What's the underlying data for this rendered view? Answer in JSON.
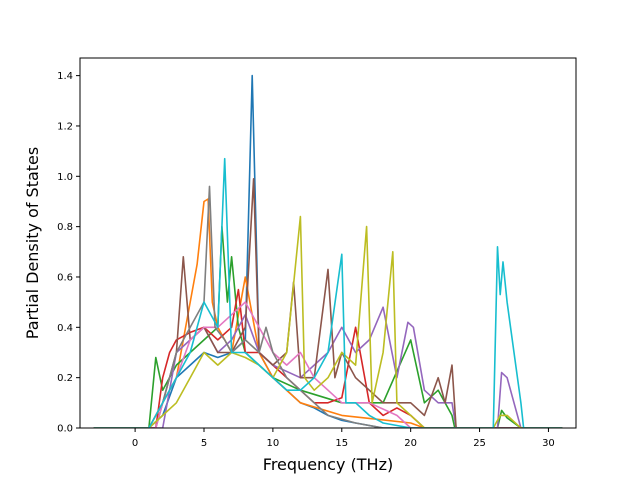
{
  "chart_data": {
    "type": "line",
    "title": "",
    "xlabel": "Frequency (THz)",
    "ylabel": "Partial Density of States",
    "xlim": [
      -4,
      32
    ],
    "ylim": [
      0,
      1.47
    ],
    "xticks": [
      0,
      5,
      10,
      15,
      20,
      25,
      30
    ],
    "yticks": [
      0.0,
      0.2,
      0.4,
      0.6,
      0.8,
      1.0,
      1.2,
      1.4
    ],
    "xtick_labels": [
      "0",
      "5",
      "10",
      "15",
      "20",
      "25",
      "30"
    ],
    "ytick_labels": [
      "0.0",
      "0.2",
      "0.4",
      "0.6",
      "0.8",
      "1.0",
      "1.2",
      "1.4"
    ],
    "grid": false,
    "legend": "none",
    "colors": [
      "#1f77b4",
      "#ff7f0e",
      "#2ca02c",
      "#d62728",
      "#9467bd",
      "#8c564b",
      "#e377c2",
      "#7f7f7f",
      "#bcbd22",
      "#17becf"
    ],
    "series": [
      {
        "color": "#1f77b4",
        "points": [
          [
            -3,
            0
          ],
          [
            1,
            0
          ],
          [
            2,
            0.05
          ],
          [
            3,
            0.2
          ],
          [
            4,
            0.25
          ],
          [
            5,
            0.3
          ],
          [
            6,
            0.28
          ],
          [
            7,
            0.3
          ],
          [
            8,
            0.35
          ],
          [
            8.5,
            1.4
          ],
          [
            9,
            0.3
          ],
          [
            10,
            0.2
          ],
          [
            11,
            0.15
          ],
          [
            12,
            0.1
          ],
          [
            13,
            0.08
          ],
          [
            14,
            0.05
          ],
          [
            15,
            0.03
          ],
          [
            16,
            0.02
          ],
          [
            17,
            0.01
          ],
          [
            18,
            0
          ],
          [
            31,
            0
          ]
        ]
      },
      {
        "color": "#ff7f0e",
        "points": [
          [
            -3,
            0
          ],
          [
            1,
            0
          ],
          [
            2,
            0.1
          ],
          [
            3,
            0.2
          ],
          [
            4,
            0.5
          ],
          [
            4.5,
            0.65
          ],
          [
            5,
            0.9
          ],
          [
            5.3,
            0.91
          ],
          [
            5.6,
            0.5
          ],
          [
            6,
            0.4
          ],
          [
            7,
            0.3
          ],
          [
            8,
            0.6
          ],
          [
            9,
            0.3
          ],
          [
            10,
            0.2
          ],
          [
            12,
            0.1
          ],
          [
            15,
            0.05
          ],
          [
            20,
            0.02
          ],
          [
            21,
            0
          ],
          [
            31,
            0
          ]
        ]
      },
      {
        "color": "#2ca02c",
        "points": [
          [
            -3,
            0
          ],
          [
            1,
            0
          ],
          [
            1.5,
            0.28
          ],
          [
            2,
            0.15
          ],
          [
            3,
            0.25
          ],
          [
            4,
            0.3
          ],
          [
            5,
            0.35
          ],
          [
            6,
            0.4
          ],
          [
            6.3,
            0.8
          ],
          [
            6.7,
            0.5
          ],
          [
            7,
            0.68
          ],
          [
            7.5,
            0.4
          ],
          [
            8,
            0.3
          ],
          [
            9,
            0.25
          ],
          [
            10,
            0.2
          ],
          [
            12,
            0.15
          ],
          [
            15,
            0.1
          ],
          [
            18,
            0.1
          ],
          [
            20,
            0.35
          ],
          [
            21,
            0.1
          ],
          [
            22,
            0.15
          ],
          [
            23,
            0.05
          ],
          [
            23.2,
            0
          ],
          [
            26.3,
            0
          ],
          [
            26.6,
            0.07
          ],
          [
            27,
            0.04
          ],
          [
            28,
            0
          ],
          [
            31,
            0
          ]
        ]
      },
      {
        "color": "#d62728",
        "points": [
          [
            -3,
            0
          ],
          [
            1.5,
            0
          ],
          [
            2,
            0.2
          ],
          [
            2.5,
            0.3
          ],
          [
            3,
            0.35
          ],
          [
            4,
            0.38
          ],
          [
            5,
            0.4
          ],
          [
            6,
            0.35
          ],
          [
            7,
            0.4
          ],
          [
            7.5,
            0.55
          ],
          [
            8,
            0.3
          ],
          [
            9,
            0.3
          ],
          [
            10,
            0.25
          ],
          [
            11,
            0.2
          ],
          [
            12,
            0.15
          ],
          [
            13,
            0.1
          ],
          [
            14,
            0.1
          ],
          [
            15,
            0.12
          ],
          [
            16,
            0.4
          ],
          [
            17,
            0.1
          ],
          [
            18,
            0.05
          ],
          [
            19,
            0.08
          ],
          [
            20,
            0.05
          ],
          [
            21,
            0
          ],
          [
            31,
            0
          ]
        ]
      },
      {
        "color": "#9467bd",
        "points": [
          [
            -3,
            0
          ],
          [
            2,
            0
          ],
          [
            3,
            0.3
          ],
          [
            4,
            0.35
          ],
          [
            5,
            0.4
          ],
          [
            6,
            0.3
          ],
          [
            7,
            0.35
          ],
          [
            8,
            0.45
          ],
          [
            9,
            0.3
          ],
          [
            10,
            0.25
          ],
          [
            12,
            0.2
          ],
          [
            14,
            0.3
          ],
          [
            15,
            0.4
          ],
          [
            16,
            0.3
          ],
          [
            17,
            0.35
          ],
          [
            18,
            0.48
          ],
          [
            19,
            0.2
          ],
          [
            19.8,
            0.42
          ],
          [
            20.2,
            0.4
          ],
          [
            21,
            0.15
          ],
          [
            22,
            0.1
          ],
          [
            23,
            0.1
          ],
          [
            23.3,
            0
          ],
          [
            26.3,
            0
          ],
          [
            26.6,
            0.22
          ],
          [
            27,
            0.2
          ],
          [
            28,
            0
          ],
          [
            31,
            0
          ]
        ]
      },
      {
        "color": "#8c564b",
        "points": [
          [
            -3,
            0
          ],
          [
            1.5,
            0
          ],
          [
            2,
            0.1
          ],
          [
            3,
            0.3
          ],
          [
            3.5,
            0.68
          ],
          [
            4,
            0.35
          ],
          [
            5,
            0.4
          ],
          [
            6,
            0.3
          ],
          [
            7,
            0.3
          ],
          [
            8,
            0.4
          ],
          [
            8.6,
            0.99
          ],
          [
            9,
            0.3
          ],
          [
            10,
            0.25
          ],
          [
            11,
            0.3
          ],
          [
            11.5,
            0.58
          ],
          [
            12,
            0.2
          ],
          [
            13,
            0.2
          ],
          [
            14,
            0.63
          ],
          [
            14.5,
            0.2
          ],
          [
            15,
            0.3
          ],
          [
            16,
            0.2
          ],
          [
            17,
            0.15
          ],
          [
            18,
            0.1
          ],
          [
            20,
            0.1
          ],
          [
            21,
            0.05
          ],
          [
            22,
            0.2
          ],
          [
            22.5,
            0.1
          ],
          [
            23,
            0.25
          ],
          [
            23.3,
            0
          ],
          [
            31,
            0
          ]
        ]
      },
      {
        "color": "#e377c2",
        "points": [
          [
            -3,
            0
          ],
          [
            1.5,
            0
          ],
          [
            2,
            0.1
          ],
          [
            3,
            0.2
          ],
          [
            4,
            0.35
          ],
          [
            5,
            0.4
          ],
          [
            6,
            0.4
          ],
          [
            7,
            0.45
          ],
          [
            8,
            0.5
          ],
          [
            9,
            0.4
          ],
          [
            10,
            0.3
          ],
          [
            11,
            0.25
          ],
          [
            12,
            0.3
          ],
          [
            13,
            0.2
          ],
          [
            14,
            0.15
          ],
          [
            15,
            0.1
          ],
          [
            17,
            0.1
          ],
          [
            19,
            0.05
          ],
          [
            20,
            0
          ],
          [
            31,
            0
          ]
        ]
      },
      {
        "color": "#7f7f7f",
        "points": [
          [
            -3,
            0
          ],
          [
            1,
            0
          ],
          [
            2,
            0.1
          ],
          [
            3,
            0.3
          ],
          [
            4,
            0.4
          ],
          [
            5,
            0.5
          ],
          [
            5.4,
            0.96
          ],
          [
            5.8,
            0.4
          ],
          [
            6.5,
            0.35
          ],
          [
            7,
            0.3
          ],
          [
            8,
            0.35
          ],
          [
            9,
            0.3
          ],
          [
            9.5,
            0.4
          ],
          [
            10,
            0.3
          ],
          [
            11,
            0.2
          ],
          [
            12,
            0.15
          ],
          [
            13,
            0.1
          ],
          [
            14,
            0.05
          ],
          [
            16,
            0.02
          ],
          [
            18,
            0
          ],
          [
            31,
            0
          ]
        ]
      },
      {
        "color": "#bcbd22",
        "points": [
          [
            -3,
            0
          ],
          [
            1,
            0
          ],
          [
            2,
            0.05
          ],
          [
            3,
            0.1
          ],
          [
            4,
            0.2
          ],
          [
            5,
            0.3
          ],
          [
            6,
            0.25
          ],
          [
            7,
            0.3
          ],
          [
            8,
            0.28
          ],
          [
            9,
            0.25
          ],
          [
            10,
            0.2
          ],
          [
            11,
            0.3
          ],
          [
            12,
            0.84
          ],
          [
            12.3,
            0.2
          ],
          [
            13,
            0.15
          ],
          [
            14,
            0.2
          ],
          [
            15,
            0.3
          ],
          [
            16,
            0.25
          ],
          [
            16.8,
            0.8
          ],
          [
            17.2,
            0.1
          ],
          [
            18,
            0.3
          ],
          [
            18.7,
            0.7
          ],
          [
            19,
            0.1
          ],
          [
            20,
            0.05
          ],
          [
            21,
            0
          ],
          [
            26,
            0
          ],
          [
            26.5,
            0.05
          ],
          [
            27,
            0.05
          ],
          [
            28,
            0
          ],
          [
            31,
            0
          ]
        ]
      },
      {
        "color": "#17becf",
        "points": [
          [
            -3,
            0
          ],
          [
            1,
            0
          ],
          [
            2,
            0.1
          ],
          [
            3,
            0.2
          ],
          [
            4,
            0.3
          ],
          [
            5,
            0.5
          ],
          [
            6,
            0.4
          ],
          [
            6.5,
            1.07
          ],
          [
            7,
            0.3
          ],
          [
            8,
            0.3
          ],
          [
            9,
            0.25
          ],
          [
            10,
            0.2
          ],
          [
            11,
            0.15
          ],
          [
            12,
            0.15
          ],
          [
            13,
            0.2
          ],
          [
            14,
            0.3
          ],
          [
            15,
            0.69
          ],
          [
            15.3,
            0.1
          ],
          [
            16,
            0.1
          ],
          [
            17,
            0.05
          ],
          [
            18,
            0.02
          ],
          [
            19,
            0.01
          ],
          [
            20,
            0
          ],
          [
            26,
            0
          ],
          [
            26.3,
            0.72
          ],
          [
            26.5,
            0.53
          ],
          [
            26.7,
            0.66
          ],
          [
            27,
            0.5
          ],
          [
            27.5,
            0.3
          ],
          [
            28,
            0.1
          ],
          [
            28.2,
            0
          ],
          [
            31,
            0
          ]
        ]
      }
    ]
  }
}
